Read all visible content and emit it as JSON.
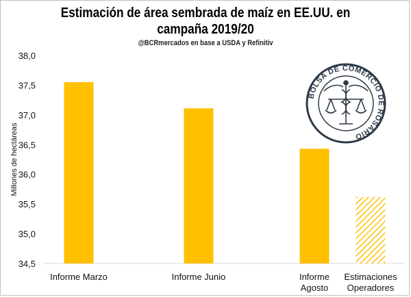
{
  "chart_data": {
    "type": "bar",
    "title_line1": "Estimación de área sembrada de maíz en EE.UU. en",
    "title_line2": "campaña 2019/20",
    "subtitle": "@BCRmercados en base a USDA y Refinitiv",
    "ylabel": "Millones de hectáreas",
    "xlabel": "",
    "ylim": [
      34.5,
      38.0
    ],
    "yticks": [
      "34,5",
      "35,0",
      "35,5",
      "36,0",
      "36,5",
      "37,0",
      "37,5",
      "38,0"
    ],
    "ytick_values": [
      34.5,
      35.0,
      35.5,
      36.0,
      36.5,
      37.0,
      37.5,
      38.0
    ],
    "categories": [
      [
        "Informe Marzo"
      ],
      [
        "Informe Junio"
      ],
      [
        "Informe",
        "Agosto"
      ],
      [
        "Estimaciones",
        "Operadores"
      ]
    ],
    "values": [
      37.55,
      37.11,
      36.43,
      35.62
    ],
    "bar_styles": [
      "solid",
      "solid",
      "solid",
      "hatched"
    ],
    "grid": false,
    "colors": {
      "bar": "#FFC000",
      "hatch": "#FFC000",
      "axis": "#d9d9d9"
    },
    "logo": {
      "text": "BOLSA DE COMERCIO DE ROSARIO",
      "icon": "caduceus-scales-icon"
    }
  }
}
